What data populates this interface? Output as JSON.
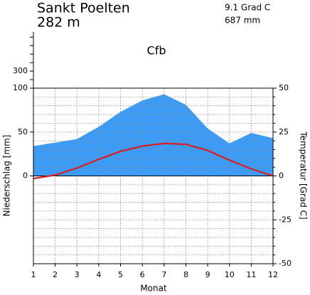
{
  "chart_data": {
    "type": "climate",
    "title": "Sankt Poelten",
    "subtitle": "282 m",
    "annotations": [
      "9.1 Grad C",
      "687 mm",
      "Cfb"
    ],
    "x_label": "Monat",
    "y_label": "Niederschlag [mm]",
    "y2_label": "Temperatur [Grad C]",
    "x": [
      1,
      2,
      3,
      4,
      5,
      6,
      7,
      8,
      9,
      10,
      11,
      12
    ],
    "xlim": [
      1,
      12
    ],
    "xticks": [
      1,
      2,
      3,
      4,
      5,
      6,
      7,
      8,
      9,
      10,
      11,
      12
    ],
    "ylim": [
      -100,
      100
    ],
    "yticks": [
      0,
      50,
      100
    ],
    "y_upper_lim": [
      100,
      760
    ],
    "y_upper_ticks": [
      300
    ],
    "y_upper_minor_ticks": [
      200,
      400,
      500,
      600,
      700
    ],
    "y2lim": [
      -50,
      50
    ],
    "y2ticks": [
      -50,
      -25,
      0,
      25,
      50
    ],
    "y2_grid": [
      -45,
      -40,
      -35,
      -30,
      -20,
      -15,
      -10,
      -5,
      5,
      10,
      15,
      20,
      30,
      35,
      40,
      45
    ],
    "grid": true,
    "series": [
      {
        "color": "#3d9bf5",
        "axis": "y",
        "values": [
          34,
          38,
          42,
          56,
          73,
          86,
          93,
          81,
          54,
          37,
          49,
          43
        ]
      },
      {
        "color": "#dd1c1c",
        "axis": "y2",
        "values": [
          -1.5,
          0.5,
          4.5,
          9.5,
          14,
          17,
          18.5,
          18,
          14.5,
          9,
          4,
          0
        ]
      }
    ]
  }
}
